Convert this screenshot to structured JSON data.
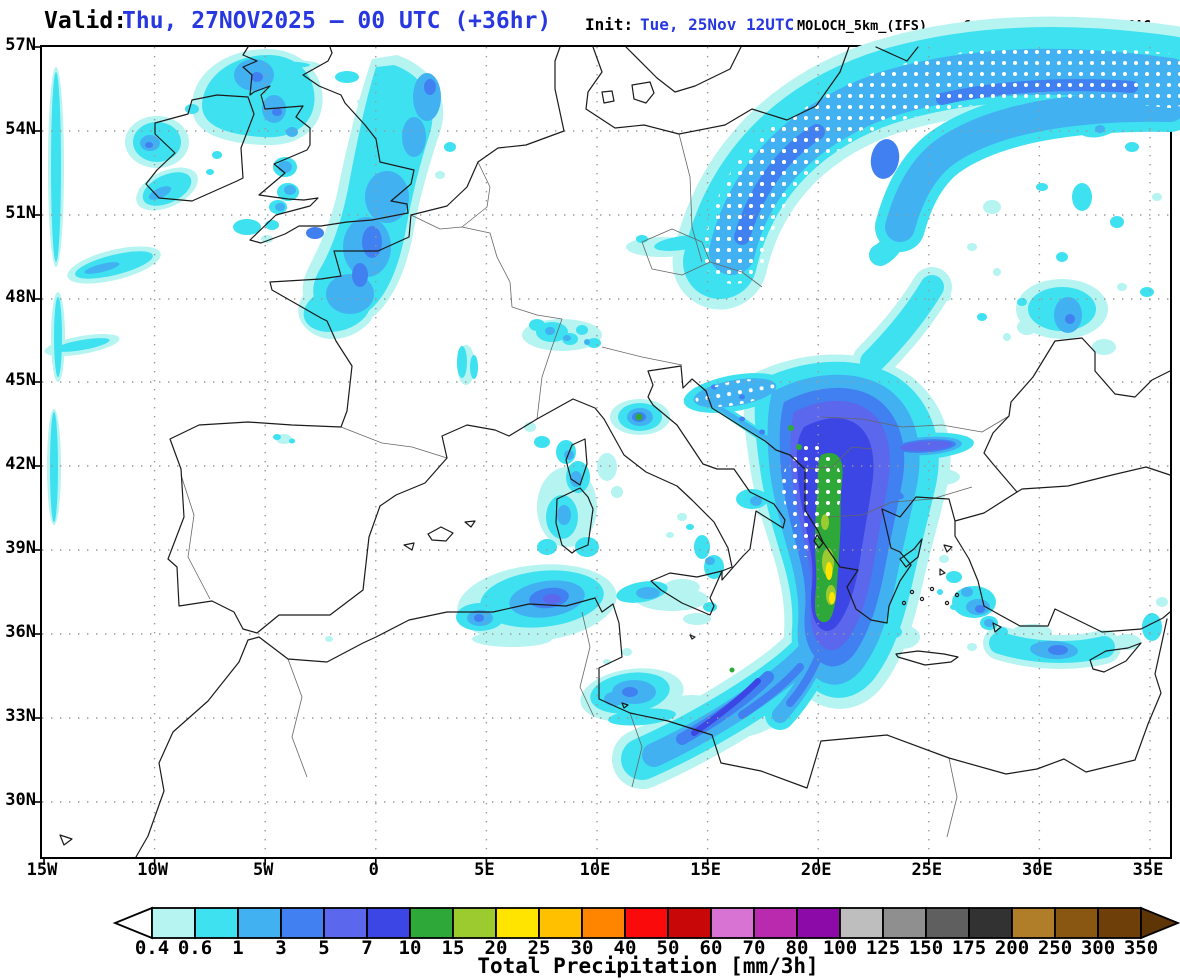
{
  "header": {
    "valid_label": "Valid:",
    "valid_value": "Thu, 27NOV2025 — 00 UTC (+36hr)",
    "init_label": "Init:",
    "init_value": "Tue, 25Nov 12UTC",
    "model": "MOLOCH_5km_(IFS)",
    "credit": "Consorzio_LaMMA/CNR-ISAC",
    "accent_blue": "#2838E0"
  },
  "map": {
    "lat_ticks": [
      "57N",
      "54N",
      "51N",
      "48N",
      "45N",
      "42N",
      "39N",
      "36N",
      "33N",
      "30N"
    ],
    "lon_ticks": [
      "15W",
      "10W",
      "5W",
      "0",
      "5E",
      "10E",
      "15E",
      "20E",
      "25E",
      "30E",
      "35E"
    ],
    "stipple_meaning": "white-dot stippling over snow areas"
  },
  "palette": {
    "c04": "#B5F4F1",
    "c06": "#3EE1F0",
    "c13": "#41B1F2",
    "c35": "#4180F0",
    "c57": "#5B67ED",
    "c710": "#3B46E5",
    "g1015": "#2FA83A",
    "g1520": "#9CCB30",
    "y2025": "#FFE400"
  },
  "colorbar": {
    "title": "Total Precipitation [mm/3h]",
    "tick_values": [
      "0.4",
      "0.6",
      "1",
      "3",
      "5",
      "7",
      "10",
      "15",
      "20",
      "25",
      "30",
      "40",
      "50",
      "60",
      "70",
      "80",
      "100",
      "125",
      "150",
      "175",
      "200",
      "250",
      "300",
      "350"
    ],
    "segment_colors": [
      "#B5F4F1",
      "#3EE1F0",
      "#41B1F2",
      "#4180F0",
      "#5B67ED",
      "#3B46E5",
      "#2FA83A",
      "#9CCB30",
      "#FFE400",
      "#FFC000",
      "#FF8500",
      "#FA0A0A",
      "#C80808",
      "#D873D4",
      "#BA2AAF",
      "#8C0BA8",
      "#BEBEBE",
      "#8F8F8F",
      "#5F5F5F",
      "#323232",
      "#B07D28",
      "#8A5713",
      "#6F3F0A"
    ],
    "left_arrow_color": "#FFFFFF",
    "right_arrow_color": "#5E3507"
  },
  "chart_data": {
    "type": "heatmap",
    "title": "Total Precipitation [mm/3h]",
    "valid": "Thu, 27NOV2025 — 00 UTC (+36hr)",
    "init": "Tue, 25Nov 12UTC",
    "model": "MOLOCH_5km_(IFS)",
    "provider": "Consorzio_LaMMA/CNR-ISAC",
    "lon_range": [
      "15W",
      "35E"
    ],
    "lat_range": [
      "30N",
      "57N"
    ],
    "scale_mm_per_3h": [
      0.4,
      0.6,
      1,
      3,
      5,
      7,
      10,
      15,
      20,
      25,
      30,
      40,
      50,
      60,
      70,
      80,
      100,
      125,
      150,
      175,
      200,
      250,
      300,
      350
    ],
    "max_observed_band": "20-25 mm/3h (yellow) along the Albania / NW Greece coast",
    "features": [
      "rain band over eastern England, the Channel and Normandy (1-5 mm/3h)",
      "snow-stippled arc from southern Poland across the Baltic into Russia",
      "intense N-S band over the Balkans with 10-25 mm/3h cores",
      "SW-NE band across the Ionian Sea toward Greece",
      "showers off the Algerian coast, around Sardinia and Sicily",
      "patches over Scotland and western Ireland",
      "band along the southern Turkey coast north of Cyprus",
      "shower cluster on the northern Black Sea coast"
    ]
  }
}
